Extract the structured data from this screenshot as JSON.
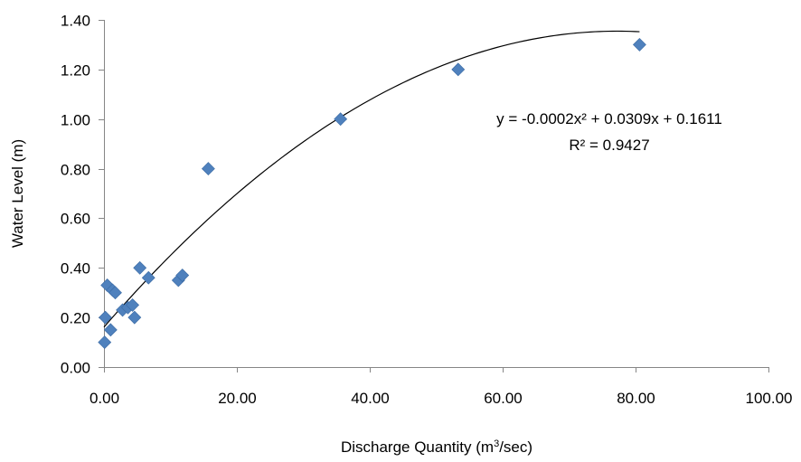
{
  "chart_data": {
    "type": "scatter",
    "title": "",
    "xlabel_main": "Discharge Quantity  (m",
    "xlabel_sup": "3",
    "xlabel_tail": "/sec)",
    "ylabel": "Water Level (m)",
    "xlim": [
      0,
      100
    ],
    "ylim": [
      0,
      1.4
    ],
    "x_ticks": [
      0,
      20,
      40,
      60,
      80,
      100
    ],
    "x_tick_labels": [
      "0.00",
      "20.00",
      "40.00",
      "60.00",
      "80.00",
      "100.00"
    ],
    "y_ticks": [
      0,
      0.2,
      0.4,
      0.6,
      0.8,
      1.0,
      1.2,
      1.4
    ],
    "y_tick_labels": [
      "0.00",
      "0.20",
      "0.40",
      "0.60",
      "0.80",
      "1.00",
      "1.20",
      "1.40"
    ],
    "grid": false,
    "legend": false,
    "marker_color": "#4f81bd",
    "trendline_color": "#000000",
    "series": [
      {
        "points": [
          {
            "x": 0.1,
            "y": 0.1
          },
          {
            "x": 0.2,
            "y": 0.2
          },
          {
            "x": 0.5,
            "y": 0.33
          },
          {
            "x": 1.0,
            "y": 0.15
          },
          {
            "x": 1.3,
            "y": 0.31
          },
          {
            "x": 1.7,
            "y": 0.3
          },
          {
            "x": 2.8,
            "y": 0.23
          },
          {
            "x": 3.6,
            "y": 0.24
          },
          {
            "x": 4.3,
            "y": 0.25
          },
          {
            "x": 4.6,
            "y": 0.2
          },
          {
            "x": 5.4,
            "y": 0.4
          },
          {
            "x": 6.7,
            "y": 0.36
          },
          {
            "x": 11.2,
            "y": 0.35
          },
          {
            "x": 11.8,
            "y": 0.37
          },
          {
            "x": 15.7,
            "y": 0.8
          },
          {
            "x": 35.6,
            "y": 1.0
          },
          {
            "x": 53.3,
            "y": 1.2
          },
          {
            "x": 80.6,
            "y": 1.3
          }
        ]
      }
    ],
    "trendline": {
      "type": "polynomial",
      "order": 2,
      "coefficients": [
        -0.0002,
        0.0309,
        0.1611
      ],
      "x_range": [
        0,
        80.6
      ],
      "equation_label": "y = -0.0002x² + 0.0309x + 0.1611",
      "r2_label": "R² = 0.9427"
    }
  }
}
